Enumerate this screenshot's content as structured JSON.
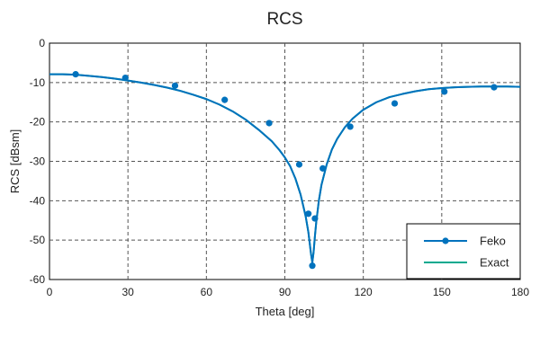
{
  "chart_data": {
    "type": "line",
    "title": "RCS",
    "xlabel": "Theta [deg]",
    "ylabel": "RCS [dBsm]",
    "xlim": [
      0,
      180
    ],
    "ylim": [
      -60,
      0
    ],
    "xticks": [
      0,
      30,
      60,
      90,
      120,
      150,
      180
    ],
    "yticks": [
      0,
      -10,
      -20,
      -30,
      -40,
      -50,
      -60
    ],
    "grid": "dashed",
    "legend_position": "bottom-right",
    "series": [
      {
        "name": "Feko",
        "color": "#0072BD",
        "marker": "circle",
        "x": [
          0,
          5,
          10,
          15,
          20,
          25,
          30,
          35,
          40,
          45,
          50,
          55,
          60,
          65,
          70,
          75,
          80,
          85,
          88,
          90,
          92,
          94,
          96,
          97,
          98,
          99,
          100,
          100.5,
          101,
          101.5,
          102,
          103,
          104,
          106,
          108,
          110,
          113,
          116,
          120,
          125,
          130,
          135,
          140,
          145,
          150,
          155,
          160,
          165,
          170,
          175,
          180
        ],
        "y": [
          -7.9,
          -7.9,
          -8.0,
          -8.3,
          -8.6,
          -9.0,
          -9.5,
          -10.0,
          -10.6,
          -11.3,
          -12.1,
          -13.1,
          -14.2,
          -15.6,
          -17.3,
          -19.4,
          -22.0,
          -24.9,
          -27.2,
          -29.0,
          -31.2,
          -34.3,
          -38.4,
          -41.2,
          -44.1,
          -48.0,
          -53.5,
          -55.7,
          -53.0,
          -49.0,
          -45.5,
          -40.0,
          -36.0,
          -30.8,
          -27.0,
          -24.3,
          -21.3,
          -19.1,
          -16.9,
          -15.0,
          -13.7,
          -12.9,
          -12.2,
          -11.7,
          -11.4,
          -11.2,
          -11.1,
          -11.0,
          -11.0,
          -11.0,
          -11.1
        ],
        "marker_x": [
          10,
          29,
          48,
          67,
          84,
          95.5,
          99,
          100.5,
          101.5,
          104.5,
          115,
          132,
          151,
          170
        ],
        "marker_y": [
          -7.9,
          -8.8,
          -10.8,
          -14.4,
          -20.3,
          -30.8,
          -43.3,
          -56.5,
          -44.5,
          -31.8,
          -21.2,
          -15.3,
          -12.3,
          -11.2
        ]
      },
      {
        "name": "Exact",
        "color": "#00A98F",
        "marker": "none",
        "x": [
          0,
          5,
          10,
          15,
          20,
          25,
          30,
          35,
          40,
          45,
          50,
          55,
          60,
          65,
          70,
          75,
          80,
          85,
          88,
          90,
          92,
          94,
          96,
          97,
          98,
          99,
          100,
          100.5,
          101,
          101.5,
          102,
          103,
          104,
          106,
          108,
          110,
          113,
          116,
          120,
          125,
          130,
          135,
          140,
          145,
          150,
          155,
          160,
          165,
          170,
          175,
          180
        ],
        "y": [
          -7.9,
          -7.9,
          -8.0,
          -8.3,
          -8.6,
          -9.0,
          -9.5,
          -10.0,
          -10.6,
          -11.3,
          -12.1,
          -13.1,
          -14.2,
          -15.6,
          -17.3,
          -19.4,
          -22.0,
          -24.9,
          -27.2,
          -29.0,
          -31.2,
          -34.3,
          -38.4,
          -41.2,
          -44.1,
          -48.0,
          -53.5,
          -55.7,
          -53.0,
          -49.0,
          -45.5,
          -40.0,
          -36.0,
          -30.8,
          -27.0,
          -24.3,
          -21.3,
          -19.1,
          -16.9,
          -15.0,
          -13.7,
          -12.9,
          -12.2,
          -11.7,
          -11.4,
          -11.2,
          -11.1,
          -11.0,
          -11.0,
          -11.0,
          -11.1
        ]
      }
    ]
  }
}
